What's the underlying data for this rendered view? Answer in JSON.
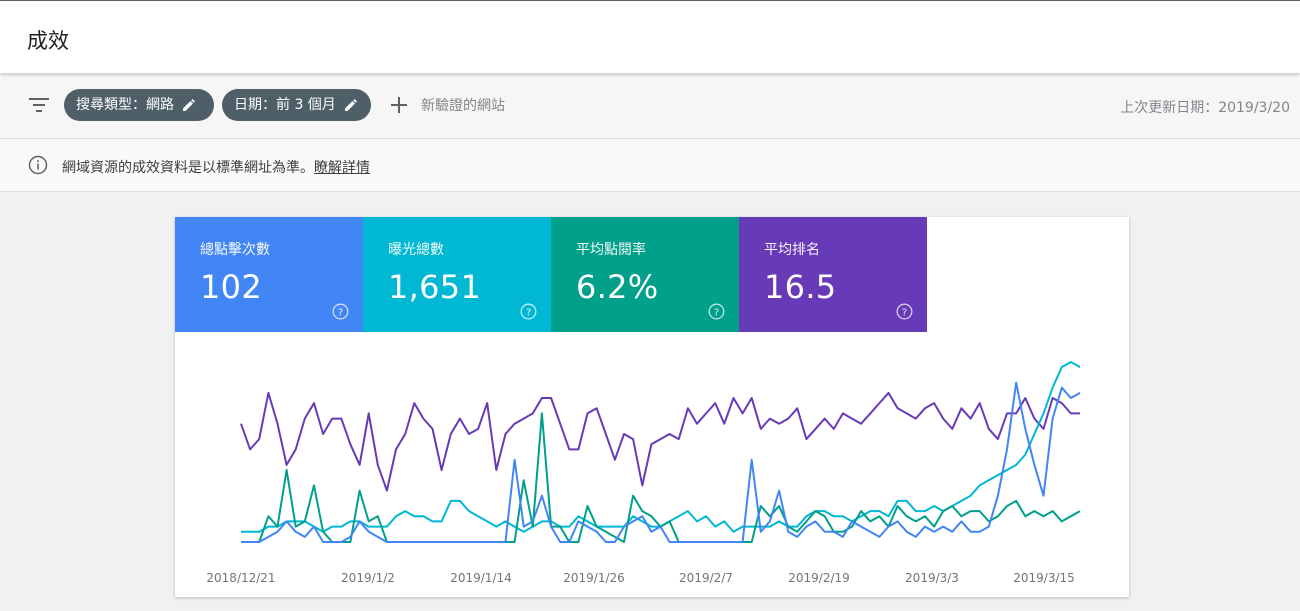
{
  "header": {
    "title": "成效"
  },
  "filters": {
    "search_type_chip": "搜尋類型：網路",
    "date_chip": "日期：前 3 個月",
    "add_filter_label": "新驗證的網站",
    "last_updated": "上次更新日期：2019/3/20",
    "icons": {
      "filter": "filter-icon",
      "edit": "pencil-icon",
      "add": "plus-icon"
    }
  },
  "notice": {
    "text": "網域資源的成效資料是以標準網址為準。",
    "link": "瞭解詳情",
    "icon": "info-icon"
  },
  "metrics": [
    {
      "label": "總點擊次數",
      "value": "102",
      "color": "#4285f4"
    },
    {
      "label": "曝光總數",
      "value": "1,651",
      "color": "#00b8d4"
    },
    {
      "label": "平均點閱率",
      "value": "6.2%",
      "color": "#00a08a"
    },
    {
      "label": "平均排名",
      "value": "16.5",
      "color": "#673ab7"
    }
  ],
  "chart_data": {
    "type": "line",
    "x_tick_labels": [
      "2018/12/21",
      "2019/1/2",
      "2019/1/14",
      "2019/1/26",
      "2019/2/7",
      "2019/2/19",
      "2019/3/3",
      "2019/3/15"
    ],
    "x_range": [
      "2018/12/21",
      "2019/3/18"
    ],
    "y_axis_shown": false,
    "legend": "none",
    "grid": false,
    "series": [
      {
        "metric": "平均排名",
        "color": "#673ab7",
        "values": [
          0.23,
          0.18,
          0.2,
          0.29,
          0.23,
          0.15,
          0.18,
          0.24,
          0.27,
          0.21,
          0.24,
          0.24,
          0.19,
          0.15,
          0.25,
          0.15,
          0.1,
          0.18,
          0.21,
          0.27,
          0.24,
          0.22,
          0.14,
          0.21,
          0.24,
          0.21,
          0.22,
          0.27,
          0.14,
          0.21,
          0.23,
          0.24,
          0.25,
          0.28,
          0.28,
          0.23,
          0.18,
          0.18,
          0.25,
          0.26,
          0.21,
          0.16,
          0.21,
          0.2,
          0.11,
          0.19,
          0.2,
          0.21,
          0.2,
          0.26,
          0.23,
          0.25,
          0.27,
          0.23,
          0.28,
          0.25,
          0.28,
          0.22,
          0.24,
          0.23,
          0.24,
          0.26,
          0.2,
          0.22,
          0.24,
          0.22,
          0.25,
          0.24,
          0.23,
          0.25,
          0.27,
          0.29,
          0.26,
          0.25,
          0.24,
          0.26,
          0.27,
          0.24,
          0.22,
          0.26,
          0.24,
          0.27,
          0.22,
          0.2,
          0.25,
          0.25,
          0.28,
          0.24,
          0.22,
          0.28,
          0.27,
          0.25,
          0.25
        ]
      },
      {
        "metric": "曝光總數",
        "color": "#00b8d4",
        "values": [
          0.02,
          0.02,
          0.02,
          0.03,
          0.03,
          0.04,
          0.04,
          0.04,
          0.03,
          0.02,
          0.03,
          0.03,
          0.04,
          0.04,
          0.03,
          0.03,
          0.03,
          0.05,
          0.06,
          0.05,
          0.05,
          0.04,
          0.04,
          0.08,
          0.08,
          0.06,
          0.05,
          0.04,
          0.03,
          0.04,
          0.03,
          0.02,
          0.03,
          0.04,
          0.04,
          0.03,
          0.03,
          0.05,
          0.04,
          0.03,
          0.03,
          0.03,
          0.03,
          0.05,
          0.04,
          0.03,
          0.03,
          0.04,
          0.05,
          0.06,
          0.04,
          0.05,
          0.03,
          0.04,
          0.02,
          0.03,
          0.03,
          0.03,
          0.03,
          0.04,
          0.03,
          0.03,
          0.05,
          0.06,
          0.06,
          0.05,
          0.05,
          0.04,
          0.05,
          0.06,
          0.06,
          0.05,
          0.08,
          0.08,
          0.06,
          0.06,
          0.07,
          0.06,
          0.07,
          0.08,
          0.09,
          0.11,
          0.12,
          0.13,
          0.14,
          0.15,
          0.17,
          0.21,
          0.25,
          0.3,
          0.34,
          0.35,
          0.34
        ]
      },
      {
        "metric": "平均點閱率",
        "color": "#00a08a",
        "values": [
          0,
          0,
          0,
          0.05,
          0.03,
          0.14,
          0.03,
          0.04,
          0.11,
          0.02,
          0,
          0,
          0,
          0.1,
          0.04,
          0.05,
          0,
          0,
          0,
          0,
          0,
          0,
          0,
          0,
          0,
          0,
          0,
          0,
          0,
          0,
          0,
          0.12,
          0.03,
          0.25,
          0.03,
          0.03,
          0,
          0,
          0.07,
          0.03,
          0.02,
          0.01,
          0,
          0.09,
          0.06,
          0.05,
          0.03,
          0.04,
          0,
          0,
          0,
          0,
          0,
          0,
          0,
          0,
          0,
          0.07,
          0.05,
          0.07,
          0.03,
          0.02,
          0.04,
          0.06,
          0.05,
          0.02,
          0.02,
          0.03,
          0.06,
          0.04,
          0.05,
          0.03,
          0.07,
          0.05,
          0.04,
          0.05,
          0.03,
          0.06,
          0.07,
          0.05,
          0.06,
          0.06,
          0.04,
          0.05,
          0.07,
          0.08,
          0.05,
          0.06,
          0.05,
          0.06,
          0.04,
          0.05,
          0.06
        ]
      },
      {
        "metric": "總點擊次數",
        "color": "#4285f4",
        "values": [
          0,
          0,
          0,
          0.01,
          0.02,
          0.04,
          0.02,
          0.01,
          0.03,
          0,
          0,
          0,
          0.01,
          0.04,
          0.02,
          0.01,
          0,
          0,
          0,
          0,
          0,
          0,
          0,
          0,
          0,
          0,
          0,
          0,
          0,
          0,
          0.16,
          0.03,
          0.04,
          0.09,
          0.03,
          0,
          0,
          0.04,
          0.03,
          0.02,
          0,
          0,
          0.03,
          0.04,
          0.05,
          0.02,
          0.03,
          0,
          0,
          0,
          0,
          0,
          0,
          0,
          0,
          0,
          0.16,
          0.02,
          0.04,
          0.1,
          0.02,
          0.01,
          0.03,
          0.04,
          0.02,
          0.02,
          0.01,
          0.04,
          0.03,
          0.02,
          0.01,
          0.03,
          0.04,
          0.02,
          0.01,
          0.03,
          0.02,
          0.03,
          0.02,
          0.04,
          0.02,
          0.02,
          0.03,
          0.09,
          0.18,
          0.31,
          0.22,
          0.15,
          0.09,
          0.24,
          0.3,
          0.28,
          0.29
        ]
      }
    ]
  }
}
